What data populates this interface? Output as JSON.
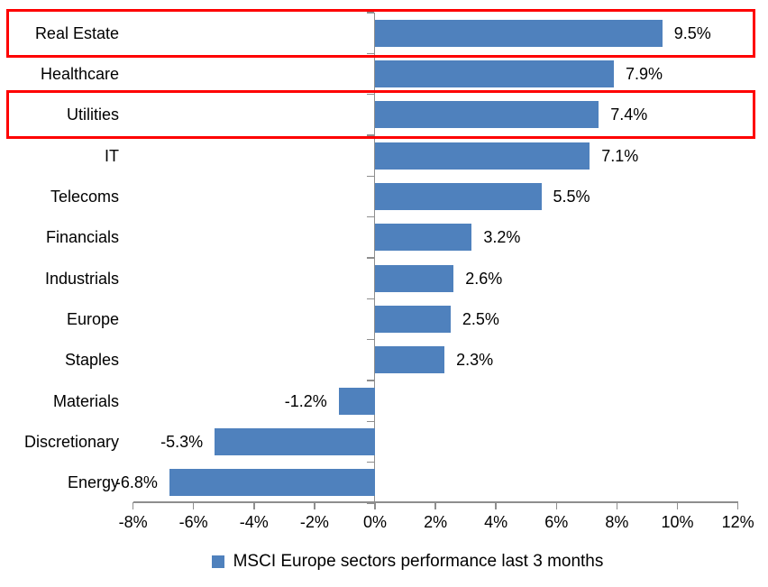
{
  "chart_data": {
    "type": "bar",
    "orientation": "horizontal",
    "categories": [
      "Real Estate",
      "Healthcare",
      "Utilities",
      "IT",
      "Telecoms",
      "Financials",
      "Industrials",
      "Europe",
      "Staples",
      "Materials",
      "Discretionary",
      "Energy"
    ],
    "values": [
      9.5,
      7.9,
      7.4,
      7.1,
      5.5,
      3.2,
      2.6,
      2.5,
      2.3,
      -1.2,
      -5.3,
      -6.8
    ],
    "value_labels": [
      "9.5%",
      "7.9%",
      "7.4%",
      "7.1%",
      "5.5%",
      "3.2%",
      "2.6%",
      "2.5%",
      "2.3%",
      "-1.2%",
      "-5.3%",
      "-6.8%"
    ],
    "x_ticks": [
      -8,
      -6,
      -4,
      -2,
      0,
      2,
      4,
      6,
      8,
      10,
      12
    ],
    "x_tick_labels": [
      "-8%",
      "-6%",
      "-4%",
      "-2%",
      "0%",
      "2%",
      "4%",
      "6%",
      "8%",
      "10%",
      "12%"
    ],
    "xlim": [
      -8,
      12
    ],
    "grid": false,
    "legend": "MSCI Europe sectors performance last 3 months",
    "legend_position": "bottom-center",
    "highlighted_categories": [
      "Real Estate",
      "Utilities"
    ],
    "colors": {
      "bar": "#4F81BD",
      "axis": "#8E8E8E",
      "highlight_box": "#FE0000",
      "text": "#000000",
      "background": "#FFFFFF"
    }
  }
}
